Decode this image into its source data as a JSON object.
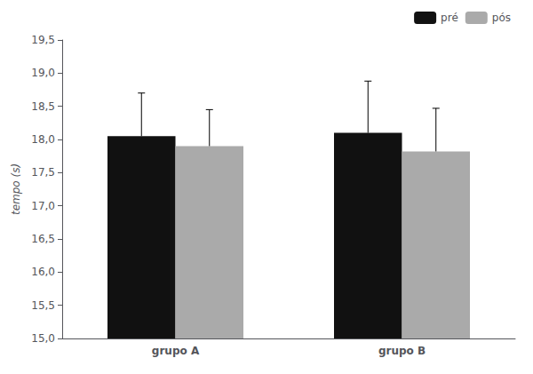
{
  "chart_data": {
    "type": "bar",
    "categories": [
      "grupo A",
      "grupo B"
    ],
    "series": [
      {
        "name": "pré",
        "color": "#111111",
        "values": [
          18.05,
          18.1
        ],
        "errors": [
          0.65,
          0.78
        ]
      },
      {
        "name": "pós",
        "color": "#aaaaaa",
        "values": [
          17.9,
          17.82
        ],
        "errors": [
          0.55,
          0.65
        ]
      }
    ],
    "ylabel": "tempo (s)",
    "ylim": [
      15.0,
      19.5
    ],
    "yticks": [
      {
        "value": 15.0,
        "label": "15,0"
      },
      {
        "value": 15.5,
        "label": "15,5"
      },
      {
        "value": 16.0,
        "label": "16,0"
      },
      {
        "value": 16.5,
        "label": "16,5"
      },
      {
        "value": 17.0,
        "label": "17,0"
      },
      {
        "value": 17.5,
        "label": "17,5"
      },
      {
        "value": 18.0,
        "label": "18,0"
      },
      {
        "value": 18.5,
        "label": "18,5"
      },
      {
        "value": 19.0,
        "label": "19,0"
      },
      {
        "value": 19.5,
        "label": "19,5"
      }
    ],
    "legend": "upper right",
    "grid": false
  }
}
